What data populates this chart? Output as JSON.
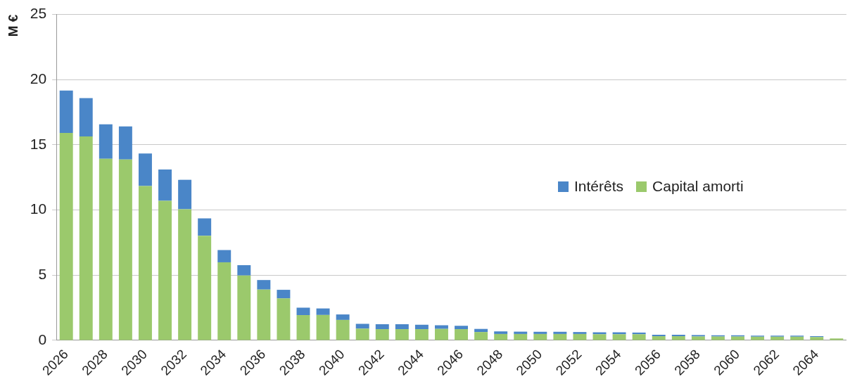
{
  "chart_data": {
    "type": "bar",
    "stacked": true,
    "ylabel": "M €",
    "categories": [
      "2026",
      null,
      "2028",
      null,
      "2030",
      null,
      "2032",
      null,
      "2034",
      null,
      "2036",
      null,
      "2038",
      null,
      "2040",
      null,
      "2042",
      null,
      "2044",
      null,
      "2046",
      null,
      "2048",
      null,
      "2050",
      null,
      "2052",
      null,
      "2054",
      null,
      "2056",
      null,
      "2058",
      null,
      "2060",
      null,
      "2062",
      null,
      "2064",
      null
    ],
    "series": [
      {
        "name": "Capital amorti",
        "color": "#9bc96c",
        "values": [
          15.92,
          15.64,
          13.93,
          13.88,
          11.84,
          10.71,
          10.06,
          8.03,
          5.99,
          4.98,
          3.9,
          3.22,
          1.94,
          1.95,
          1.57,
          0.9,
          0.86,
          0.86,
          0.86,
          0.88,
          0.86,
          0.64,
          0.49,
          0.49,
          0.49,
          0.49,
          0.49,
          0.47,
          0.47,
          0.47,
          0.32,
          0.32,
          0.3,
          0.3,
          0.3,
          0.28,
          0.28,
          0.28,
          0.26,
          0.15
        ]
      },
      {
        "name": "Intérêts",
        "color": "#4a86c8",
        "values": [
          3.24,
          2.94,
          2.64,
          2.54,
          2.5,
          2.4,
          2.26,
          1.33,
          0.94,
          0.79,
          0.73,
          0.66,
          0.57,
          0.5,
          0.42,
          0.37,
          0.38,
          0.38,
          0.34,
          0.28,
          0.26,
          0.24,
          0.2,
          0.18,
          0.17,
          0.17,
          0.15,
          0.15,
          0.15,
          0.13,
          0.11,
          0.11,
          0.11,
          0.09,
          0.09,
          0.09,
          0.08,
          0.08,
          0.06,
          null
        ]
      }
    ],
    "ylim": [
      0,
      25
    ],
    "yticks": [
      0,
      5,
      10,
      15,
      20,
      25
    ],
    "grid": "y",
    "legend": "right"
  }
}
